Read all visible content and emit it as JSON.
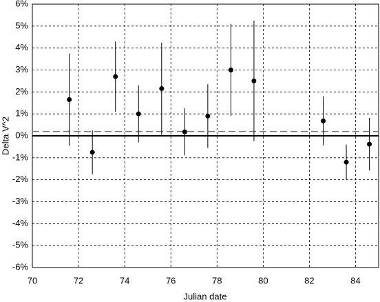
{
  "chart_data": {
    "type": "scatter",
    "xlabel": "Julian date",
    "ylabel": "Delta V^2",
    "x": [
      71.6,
      72.6,
      73.6,
      74.6,
      75.6,
      76.6,
      77.6,
      78.6,
      79.6,
      82.6,
      83.6,
      84.6
    ],
    "values": [
      1.65,
      -0.75,
      2.7,
      1.0,
      2.15,
      0.18,
      0.9,
      3.0,
      2.5,
      0.68,
      -1.2,
      -0.38
    ],
    "errors": [
      2.1,
      1.0,
      1.6,
      1.3,
      2.1,
      1.07,
      1.45,
      2.1,
      2.75,
      1.12,
      0.8,
      1.2
    ],
    "color": "#000000",
    "reference_line": 0.2,
    "xlim": [
      70,
      85
    ],
    "xticks": [
      70,
      72,
      74,
      76,
      78,
      80,
      82,
      84
    ],
    "ylim": [
      -6,
      6
    ],
    "yticks": [
      {
        "value": -6,
        "label": "-6%"
      },
      {
        "value": -5,
        "label": "-5%"
      },
      {
        "value": -4,
        "label": "-4%"
      },
      {
        "value": -3,
        "label": "-3%"
      },
      {
        "value": -2,
        "label": "-2%"
      },
      {
        "value": -1,
        "label": "-1%"
      },
      {
        "value": 0,
        "label": "0%"
      },
      {
        "value": 1,
        "label": "1%"
      },
      {
        "value": 2,
        "label": "2%"
      },
      {
        "value": 3,
        "label": "3%"
      },
      {
        "value": 4,
        "label": "4%"
      },
      {
        "value": 5,
        "label": "5%"
      },
      {
        "value": 6,
        "label": "6%"
      }
    ],
    "grid": true
  }
}
